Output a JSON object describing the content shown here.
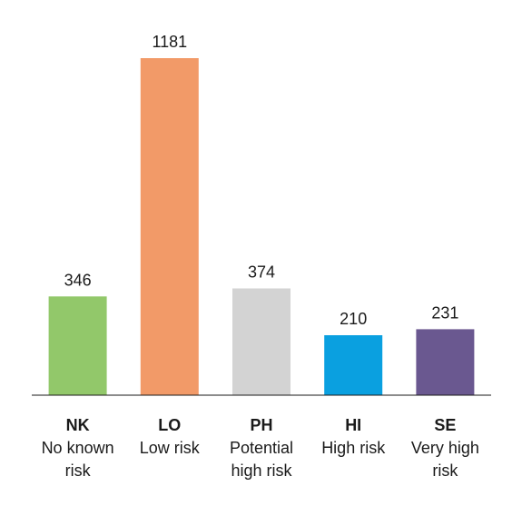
{
  "chart_data": {
    "type": "bar",
    "title": "",
    "xlabel": "",
    "ylabel": "",
    "ylim": [
      0,
      1181
    ],
    "grid": false,
    "legend": "none",
    "categories": [
      {
        "code": "NK",
        "label_lines": [
          "No known",
          "risk"
        ]
      },
      {
        "code": "LO",
        "label_lines": [
          "Low risk"
        ]
      },
      {
        "code": "PH",
        "label_lines": [
          "Potential",
          "high risk"
        ]
      },
      {
        "code": "HI",
        "label_lines": [
          "High risk"
        ]
      },
      {
        "code": "SE",
        "label_lines": [
          "Very high",
          "risk"
        ]
      }
    ],
    "values": [
      346,
      1181,
      374,
      210,
      231
    ],
    "colors": [
      "#92c86a",
      "#f29a68",
      "#d3d3d3",
      "#0aa0e0",
      "#6a5890"
    ],
    "axis_color": "#1a1a1a"
  }
}
